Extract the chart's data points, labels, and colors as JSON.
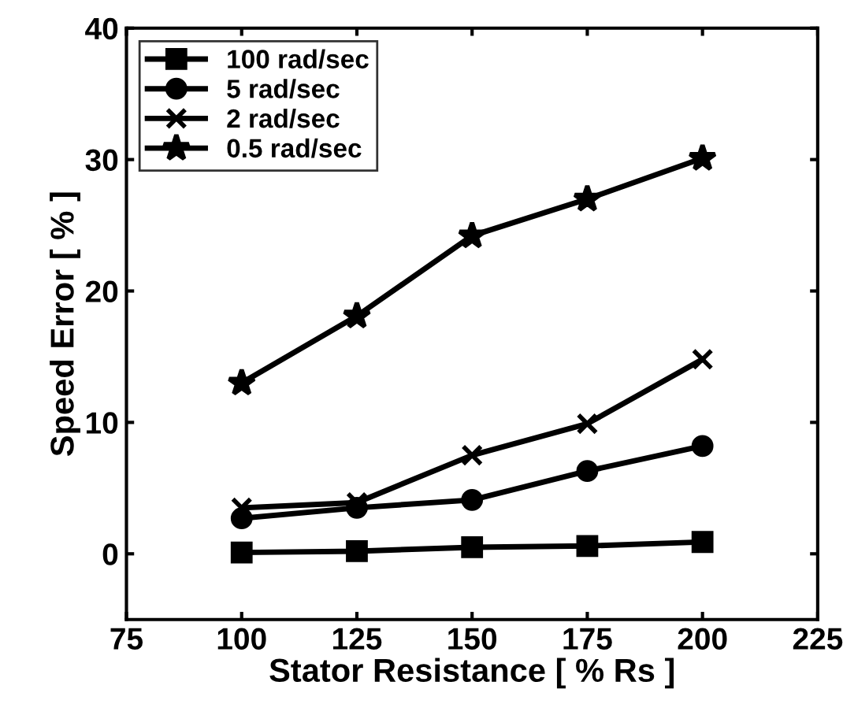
{
  "chart_data": {
    "type": "line",
    "xlabel": "Stator Resistance [ % Rs ]",
    "ylabel": "Speed Error [ % ]",
    "x": [
      100,
      125,
      150,
      175,
      200
    ],
    "series": [
      {
        "name": "100 rad/sec",
        "color": "#000000",
        "marker": "square",
        "values": [
          0.1,
          0.2,
          0.5,
          0.6,
          0.9
        ]
      },
      {
        "name": "5 rad/sec",
        "color": "#000000",
        "marker": "circle",
        "values": [
          2.7,
          3.5,
          4.1,
          6.3,
          8.2
        ]
      },
      {
        "name": "2 rad/sec",
        "color": "#000000",
        "marker": "cross",
        "values": [
          3.5,
          3.9,
          7.5,
          9.9,
          14.8
        ]
      },
      {
        "name": "0.5 rad/sec",
        "color": "#000000",
        "marker": "star",
        "values": [
          13.0,
          18.1,
          24.2,
          27.0,
          30.1
        ]
      }
    ],
    "xlim": [
      75,
      225
    ],
    "xticks": [
      75,
      100,
      125,
      150,
      175,
      200,
      225
    ],
    "ylim": [
      -5,
      40
    ],
    "yticks": [
      0,
      10,
      20,
      30,
      40
    ],
    "grid": false,
    "legend": "top left",
    "line_style": "solid"
  }
}
